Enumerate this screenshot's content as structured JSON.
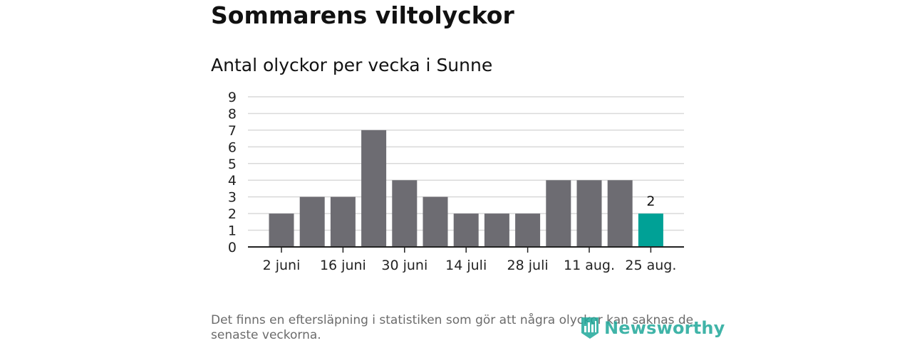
{
  "header": {
    "title": "Sommarens viltolyckor",
    "subtitle": "Antal olyckor per vecka i Sunne"
  },
  "chart_data": {
    "type": "bar",
    "title": "Antal olyckor per vecka i Sunne",
    "xlabel": "",
    "ylabel": "",
    "ylim": [
      0,
      9
    ],
    "yticks": [
      0,
      1,
      2,
      3,
      4,
      5,
      6,
      7,
      8,
      9
    ],
    "grid": true,
    "values": [
      2,
      3,
      3,
      7,
      4,
      3,
      2,
      2,
      2,
      4,
      4,
      4,
      2
    ],
    "highlight_index": 12,
    "highlight_label": "2",
    "xtick_labels": [
      {
        "label": "2 juni",
        "after_bar": 0
      },
      {
        "label": "16 juni",
        "after_bar": 2
      },
      {
        "label": "30 juni",
        "after_bar": 4
      },
      {
        "label": "14 juli",
        "after_bar": 6
      },
      {
        "label": "28 juli",
        "after_bar": 8
      },
      {
        "label": "11 aug.",
        "after_bar": 10
      },
      {
        "label": "25 aug.",
        "after_bar": 12
      }
    ],
    "colors": {
      "bar": "#6d6c72",
      "highlight": "#00a196",
      "grid": "#d9d9d9",
      "axis": "#222222"
    }
  },
  "footer": {
    "note": "Det finns en eftersläpning i statistiken som gör att några olyckor kan saknas de senaste veckorna.",
    "logo_text": "Newsworthy",
    "logo_icon": "bar-chart-shield-icon"
  }
}
